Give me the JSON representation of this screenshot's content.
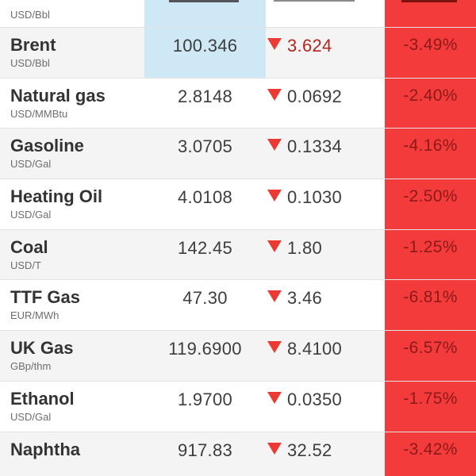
{
  "table": {
    "partial_row": {
      "unit": "USD/Bbl"
    },
    "rows": [
      {
        "name": "Brent",
        "unit": "USD/Bbl",
        "price": "100.346",
        "change": "3.624",
        "percent": "-3.49%",
        "direction": "down",
        "updated": true
      },
      {
        "name": "Natural gas",
        "unit": "USD/MMBtu",
        "price": "2.8148",
        "change": "0.0692",
        "percent": "-2.40%",
        "direction": "down",
        "updated": false
      },
      {
        "name": "Gasoline",
        "unit": "USD/Gal",
        "price": "3.0705",
        "change": "0.1334",
        "percent": "-4.16%",
        "direction": "down",
        "updated": false
      },
      {
        "name": "Heating Oil",
        "unit": "USD/Gal",
        "price": "4.0108",
        "change": "0.1030",
        "percent": "-2.50%",
        "direction": "down",
        "updated": false
      },
      {
        "name": "Coal",
        "unit": "USD/T",
        "price": "142.45",
        "change": "1.80",
        "percent": "-1.25%",
        "direction": "down",
        "updated": false
      },
      {
        "name": "TTF Gas",
        "unit": "EUR/MWh",
        "price": "47.30",
        "change": "3.46",
        "percent": "-6.81%",
        "direction": "down",
        "updated": false
      },
      {
        "name": "UK Gas",
        "unit": "GBp/thm",
        "price": "119.6900",
        "change": "8.4100",
        "percent": "-6.57%",
        "direction": "down",
        "updated": false
      },
      {
        "name": "Ethanol",
        "unit": "USD/Gal",
        "price": "1.9700",
        "change": "0.0350",
        "percent": "-1.75%",
        "direction": "down",
        "updated": false
      },
      {
        "name": "Naphtha",
        "unit": "",
        "price": "917.83",
        "change": "32.52",
        "percent": "-3.42%",
        "direction": "down",
        "updated": false
      }
    ],
    "icons": {
      "change_direction": "down-triangle"
    },
    "colors": {
      "negative_bg": "#f43b3b",
      "negative_text": "#8e1919",
      "triangle_red": "#ea3a33",
      "flash_blue": "#cee8f5",
      "row_stripe": "#f4f4f4",
      "separator": "#e2e2e2",
      "name_text": "#333333",
      "unit_text": "#6e6e6e",
      "number_text": "#3d3d3d",
      "updated_change_text": "#b3251f"
    }
  }
}
